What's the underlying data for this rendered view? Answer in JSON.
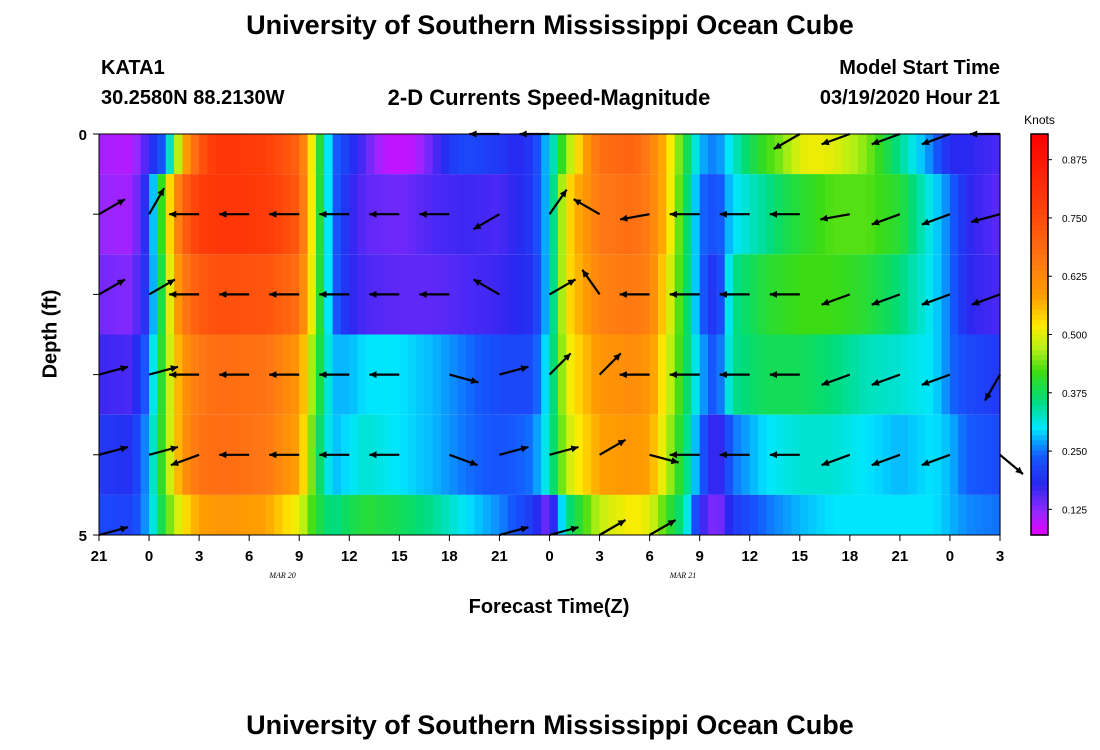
{
  "page": {
    "title_top": "University of Southern Mississippi Ocean Cube",
    "title_bottom": "University of Southern Mississippi Ocean Cube",
    "station": "KATA1",
    "location": "30.2580N 88.2130W",
    "plot_title": "2-D Currents Speed-Magnitude",
    "model_label": "Model Start Time",
    "model_time": "03/19/2020 Hour 21"
  },
  "chart_data": {
    "type": "heatmap",
    "title": "2-D Currents Speed-Magnitude",
    "xlabel": "Forecast Time(Z)",
    "ylabel": "Depth (ft)",
    "colorbar": {
      "label": "Knots",
      "ticks": [
        0.125,
        0.25,
        0.375,
        0.5,
        0.625,
        0.75,
        0.875
      ],
      "range": [
        0.07,
        0.93
      ]
    },
    "x_tick_labels": [
      "21",
      "0",
      "3",
      "6",
      "9",
      "12",
      "15",
      "18",
      "21",
      "0",
      "3",
      "6",
      "9",
      "12",
      "15",
      "18",
      "21",
      "0",
      "3"
    ],
    "date_labels": [
      {
        "text": "MAR 20",
        "at_hour": 11
      },
      {
        "text": "MAR 21",
        "at_hour": 35
      }
    ],
    "x_range_hours": [
      0,
      54
    ],
    "y_tick_labels": [
      "0",
      "5"
    ],
    "y_range": [
      0,
      5
    ],
    "depth_rows": [
      {
        "depth_top": 0,
        "depth_bottom": 0.5,
        "hours": [
          0,
          2,
          4,
          5,
          6,
          7,
          8,
          10,
          12,
          13,
          14,
          15,
          16,
          17,
          18,
          19,
          20,
          21,
          22,
          24,
          25,
          26,
          27,
          28,
          30,
          32,
          33,
          34,
          36,
          37,
          38,
          39,
          40,
          41,
          42,
          43,
          44,
          46,
          48,
          50,
          51,
          52,
          54
        ],
        "speed": [
          0.11,
          0.1,
          0.25,
          0.55,
          0.72,
          0.8,
          0.8,
          0.78,
          0.7,
          0.45,
          0.25,
          0.2,
          0.15,
          0.1,
          0.09,
          0.1,
          0.15,
          0.2,
          0.22,
          0.2,
          0.18,
          0.2,
          0.3,
          0.45,
          0.68,
          0.7,
          0.65,
          0.55,
          0.28,
          0.25,
          0.32,
          0.38,
          0.42,
          0.45,
          0.5,
          0.51,
          0.5,
          0.45,
          0.35,
          0.25,
          0.18,
          0.18,
          0.16
        ]
      },
      {
        "depth_top": 0.5,
        "depth_bottom": 1.5,
        "hours": [
          0,
          2,
          3,
          4,
          5,
          6,
          7,
          8,
          10,
          12,
          13,
          14,
          15,
          16,
          18,
          20,
          22,
          24,
          26,
          27,
          28,
          30,
          32,
          33,
          34,
          35,
          36,
          37,
          38,
          40,
          41,
          42,
          44,
          46,
          48,
          50,
          51,
          52,
          54
        ],
        "speed": [
          0.12,
          0.11,
          0.22,
          0.48,
          0.7,
          0.78,
          0.8,
          0.8,
          0.79,
          0.72,
          0.45,
          0.25,
          0.18,
          0.15,
          0.14,
          0.16,
          0.17,
          0.16,
          0.2,
          0.3,
          0.52,
          0.66,
          0.68,
          0.65,
          0.55,
          0.4,
          0.25,
          0.22,
          0.3,
          0.35,
          0.38,
          0.4,
          0.43,
          0.43,
          0.4,
          0.3,
          0.25,
          0.18,
          0.15
        ]
      },
      {
        "depth_top": 1.5,
        "depth_bottom": 2.5,
        "hours": [
          0,
          2,
          3,
          4,
          5,
          6,
          7,
          8,
          10,
          12,
          13,
          14,
          15,
          16,
          18,
          20,
          22,
          24,
          26,
          27,
          28,
          30,
          32,
          33,
          34,
          35,
          36,
          37,
          38,
          40,
          42,
          44,
          46,
          48,
          50,
          51,
          52,
          54
        ],
        "speed": [
          0.14,
          0.13,
          0.22,
          0.45,
          0.65,
          0.72,
          0.74,
          0.74,
          0.73,
          0.68,
          0.45,
          0.25,
          0.18,
          0.16,
          0.15,
          0.15,
          0.16,
          0.17,
          0.19,
          0.3,
          0.52,
          0.64,
          0.66,
          0.64,
          0.52,
          0.4,
          0.25,
          0.18,
          0.35,
          0.4,
          0.42,
          0.42,
          0.4,
          0.36,
          0.3,
          0.25,
          0.18,
          0.16
        ]
      },
      {
        "depth_top": 2.5,
        "depth_bottom": 3.5,
        "hours": [
          0,
          2,
          3,
          4,
          5,
          6,
          7,
          8,
          10,
          12,
          13,
          14,
          15,
          16,
          18,
          20,
          22,
          24,
          26,
          27,
          28,
          30,
          32,
          33,
          34,
          35,
          36,
          37,
          38,
          40,
          42,
          44,
          46,
          48,
          50,
          51,
          52,
          54
        ],
        "speed": [
          0.17,
          0.16,
          0.26,
          0.45,
          0.6,
          0.66,
          0.68,
          0.68,
          0.67,
          0.6,
          0.42,
          0.28,
          0.28,
          0.3,
          0.3,
          0.28,
          0.25,
          0.22,
          0.22,
          0.32,
          0.5,
          0.6,
          0.62,
          0.6,
          0.5,
          0.4,
          0.28,
          0.22,
          0.35,
          0.38,
          0.38,
          0.36,
          0.33,
          0.32,
          0.3,
          0.25,
          0.22,
          0.2
        ]
      },
      {
        "depth_top": 3.5,
        "depth_bottom": 4.5,
        "hours": [
          0,
          2,
          3,
          4,
          5,
          6,
          7,
          8,
          10,
          12,
          13,
          14,
          15,
          16,
          18,
          20,
          22,
          24,
          26,
          27,
          28,
          30,
          32,
          33,
          34,
          35,
          36,
          37,
          38,
          40,
          42,
          44,
          46,
          48,
          50,
          51,
          52,
          54
        ],
        "speed": [
          0.2,
          0.19,
          0.28,
          0.45,
          0.6,
          0.67,
          0.68,
          0.68,
          0.66,
          0.58,
          0.4,
          0.28,
          0.3,
          0.32,
          0.3,
          0.28,
          0.25,
          0.23,
          0.25,
          0.33,
          0.48,
          0.58,
          0.6,
          0.58,
          0.48,
          0.38,
          0.25,
          0.15,
          0.25,
          0.3,
          0.32,
          0.32,
          0.3,
          0.28,
          0.3,
          0.28,
          0.24,
          0.22
        ]
      },
      {
        "depth_top": 4.5,
        "depth_bottom": 5,
        "hours": [
          0,
          2,
          3,
          4,
          5,
          6,
          7,
          8,
          10,
          12,
          13,
          14,
          15,
          16,
          18,
          20,
          22,
          24,
          26,
          27,
          28,
          30,
          32,
          33,
          34,
          35,
          36,
          37,
          38,
          40,
          42,
          44,
          46,
          48,
          50,
          51,
          52,
          54
        ],
        "speed": [
          0.22,
          0.21,
          0.28,
          0.42,
          0.52,
          0.58,
          0.6,
          0.6,
          0.58,
          0.5,
          0.4,
          0.35,
          0.38,
          0.4,
          0.38,
          0.35,
          0.3,
          0.26,
          0.2,
          0.13,
          0.35,
          0.48,
          0.52,
          0.5,
          0.42,
          0.35,
          0.18,
          0.12,
          0.2,
          0.25,
          0.28,
          0.3,
          0.3,
          0.3,
          0.3,
          0.28,
          0.26,
          0.25
        ]
      }
    ],
    "vector_columns_hours": [
      0,
      3,
      6,
      9,
      12,
      15,
      18,
      21,
      24,
      27,
      30,
      33,
      36,
      39,
      42,
      45,
      48,
      51,
      54
    ],
    "vector_rows_depth": [
      0,
      1,
      2,
      3,
      4,
      5
    ],
    "vector_directions_deg": [
      [
        null,
        null,
        null,
        null,
        null,
        null,
        null,
        null,
        180,
        180,
        null,
        null,
        null,
        null,
        210,
        200,
        200,
        200,
        180
      ],
      [
        30,
        60,
        180,
        180,
        180,
        180,
        180,
        180,
        210,
        55,
        150,
        190,
        180,
        180,
        180,
        190,
        200,
        200,
        195
      ],
      [
        30,
        30,
        180,
        180,
        180,
        180,
        180,
        180,
        150,
        30,
        125,
        180,
        180,
        180,
        180,
        200,
        200,
        200,
        200
      ],
      [
        15,
        15,
        180,
        180,
        180,
        180,
        180,
        345,
        15,
        45,
        45,
        180,
        180,
        180,
        180,
        200,
        200,
        200,
        240
      ],
      [
        15,
        15,
        200,
        180,
        180,
        180,
        180,
        340,
        15,
        15,
        30,
        345,
        180,
        180,
        180,
        200,
        200,
        200,
        320
      ],
      [
        15,
        null,
        null,
        null,
        null,
        null,
        null,
        null,
        15,
        15,
        30,
        30,
        null,
        null,
        null,
        null,
        null,
        null,
        null
      ]
    ]
  }
}
